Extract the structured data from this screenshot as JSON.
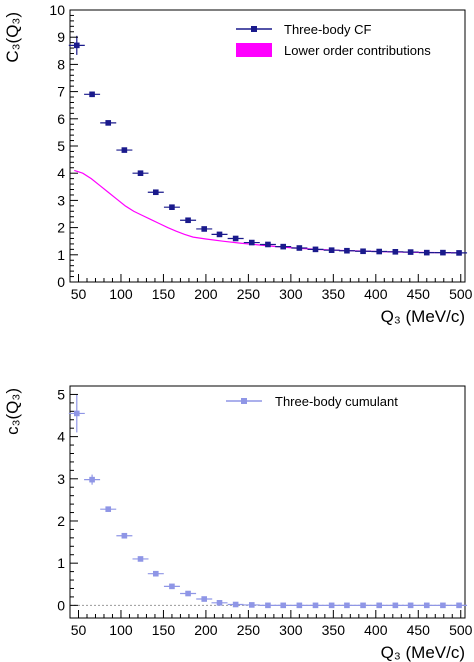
{
  "colors": {
    "cf": "#1a1a8c",
    "band": "#ff00ff",
    "cumulant": "#8f96e6",
    "frame": "#000000",
    "zero_line": "#999999"
  },
  "chart_data": [
    {
      "type": "scatter",
      "xlabel": "Q₃ (MeV/c)",
      "ylabel": "C₃(Q₃)",
      "xlim": [
        40,
        505
      ],
      "ylim": [
        0,
        10
      ],
      "x_ticks": [
        50,
        100,
        150,
        200,
        250,
        300,
        350,
        400,
        450,
        500
      ],
      "y_ticks": [
        0,
        1,
        2,
        3,
        4,
        5,
        6,
        7,
        8,
        9,
        10
      ],
      "grid": false,
      "legend_position": "top-right",
      "series": [
        {
          "name": "Three-body CF",
          "marker": "square",
          "x": [
            48,
            66,
            85,
            104,
            123,
            141,
            160,
            179,
            198,
            216,
            235,
            254,
            273,
            291,
            310,
            329,
            348,
            366,
            385,
            404,
            423,
            441,
            460,
            479,
            498
          ],
          "y": [
            8.7,
            6.9,
            5.85,
            4.85,
            4.0,
            3.3,
            2.75,
            2.27,
            1.95,
            1.75,
            1.6,
            1.45,
            1.38,
            1.3,
            1.25,
            1.2,
            1.17,
            1.15,
            1.13,
            1.12,
            1.11,
            1.1,
            1.08,
            1.08,
            1.07
          ],
          "yerr": [
            0.35,
            0.1,
            0.07,
            0.05,
            0.04,
            0.04,
            0.03,
            0.03,
            0.03,
            0.03,
            0.03,
            0.02,
            0.02,
            0.02,
            0.02,
            0.02,
            0.02,
            0.02,
            0.02,
            0.02,
            0.02,
            0.02,
            0.02,
            0.02,
            0.02
          ]
        },
        {
          "name": "Lower order contributions",
          "type": "band",
          "x": [
            45,
            55,
            65,
            75,
            85,
            95,
            105,
            115,
            125,
            135,
            145,
            155,
            165,
            175,
            185,
            200,
            220,
            240,
            260,
            280,
            300,
            330,
            360,
            400,
            450,
            500
          ],
          "y": [
            4.1,
            4.0,
            3.8,
            3.55,
            3.3,
            3.05,
            2.8,
            2.6,
            2.45,
            2.3,
            2.15,
            2.0,
            1.87,
            1.75,
            1.65,
            1.58,
            1.5,
            1.43,
            1.37,
            1.31,
            1.26,
            1.2,
            1.16,
            1.12,
            1.09,
            1.07
          ]
        }
      ]
    },
    {
      "type": "scatter",
      "xlabel": "Q₃ (MeV/c)",
      "ylabel": "c₃(Q₃)",
      "xlim": [
        40,
        505
      ],
      "ylim": [
        -0.3,
        5.2
      ],
      "x_ticks": [
        50,
        100,
        150,
        200,
        250,
        300,
        350,
        400,
        450,
        500
      ],
      "y_ticks": [
        0,
        1,
        2,
        3,
        4,
        5
      ],
      "grid": false,
      "legend_position": "top-right",
      "series": [
        {
          "name": "Three-body cumulant",
          "marker": "square",
          "x": [
            48,
            66,
            85,
            104,
            123,
            141,
            160,
            179,
            198,
            216,
            235,
            254,
            273,
            291,
            310,
            329,
            348,
            366,
            385,
            404,
            423,
            441,
            460,
            479,
            498
          ],
          "y": [
            4.55,
            2.98,
            2.28,
            1.65,
            1.1,
            0.75,
            0.45,
            0.28,
            0.15,
            0.06,
            0.02,
            0.01,
            0.0,
            0.0,
            0.0,
            0.0,
            0.0,
            0.0,
            0.0,
            0.0,
            0.0,
            0.0,
            0.0,
            0.0,
            0.0
          ],
          "yerr": [
            0.45,
            0.12,
            0.06,
            0.05,
            0.04,
            0.03,
            0.03,
            0.03,
            0.02,
            0.02,
            0.02,
            0.02,
            0.02,
            0.02,
            0.02,
            0.02,
            0.02,
            0.02,
            0.02,
            0.02,
            0.02,
            0.02,
            0.02,
            0.02,
            0.02
          ]
        }
      ]
    }
  ]
}
